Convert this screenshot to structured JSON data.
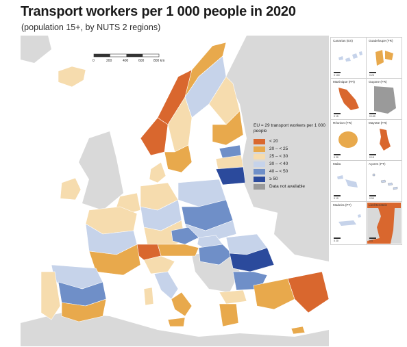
{
  "title": "Transport workers per 1 000 people in 2020",
  "subtitle": "(population 15+, by NUTS 2 regions)",
  "scale_bar": {
    "ticks": [
      "0",
      "200",
      "400",
      "600",
      "800 km"
    ]
  },
  "legend": {
    "title": "EU = 29 transport workers per 1 000 people",
    "items": [
      {
        "label": "< 20",
        "color": "#d9672e"
      },
      {
        "label": "20 – < 25",
        "color": "#e8a94c"
      },
      {
        "label": "25 – < 30",
        "color": "#f6dcae"
      },
      {
        "label": "30 – < 40",
        "color": "#c6d3ea"
      },
      {
        "label": "40 – < 50",
        "color": "#6f8fc8"
      },
      {
        "label": "≥ 50",
        "color": "#2b4a9c"
      },
      {
        "label": "Data not available",
        "color": "#9a9a9a"
      }
    ]
  },
  "insets": [
    {
      "label": "Canarias (ES)",
      "scale": "0   100"
    },
    {
      "label": "Guadeloupe (FR)",
      "scale": "0   25"
    },
    {
      "label": "Martinique (FR)",
      "scale": "0   15"
    },
    {
      "label": "Guyane (FR)",
      "scale": "0   100"
    },
    {
      "label": "Réunion (FR)",
      "scale": "0   20"
    },
    {
      "label": "Mayotte (FR)",
      "scale": "0   15"
    },
    {
      "label": "Malta",
      "scale": "0   10"
    },
    {
      "label": "Açores (PT)",
      "scale": "0   50"
    },
    {
      "label": "Madeira (PT)",
      "scale": "0   20"
    },
    {
      "label": "Liechtenstein",
      "scale": "0   5"
    }
  ],
  "colors": {
    "sea": "#ffffff",
    "land_outside": "#d9d9d9",
    "border": "#ffffff",
    "country_border": "#3a3a3a"
  }
}
